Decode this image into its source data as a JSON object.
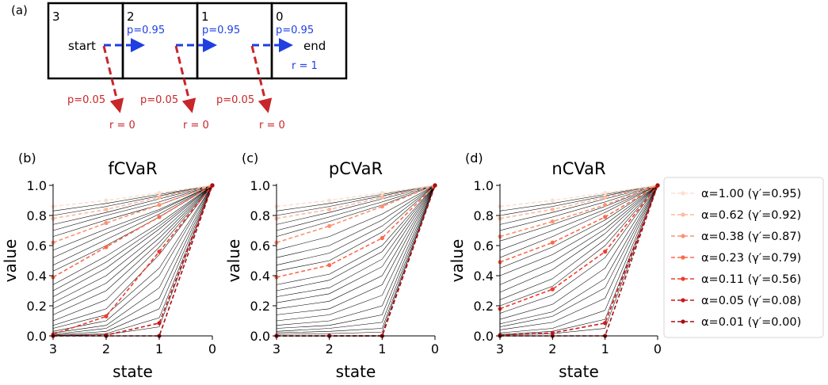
{
  "panel_a": {
    "panel_label": "(a)",
    "state_numbers": [
      "3",
      "2",
      "1",
      "0"
    ],
    "start_label": "start",
    "end_label": "end",
    "end_reward": "r = 1",
    "forward_prob_labels": [
      "p=0.95",
      "p=0.95",
      "p=0.95"
    ],
    "fail_prob_labels": [
      "p=0.05",
      "p=0.05",
      "p=0.05"
    ],
    "fail_reward_labels": [
      "r = 0",
      "r = 0",
      "r = 0"
    ],
    "colors": {
      "forward": "#1f3fe0",
      "fail": "#c8262a",
      "box": "#000000"
    }
  },
  "legend": {
    "entries": [
      "α=1.00 (γ′=0.95)",
      "α=0.62 (γ′=0.92)",
      "α=0.38 (γ′=0.87)",
      "α=0.23 (γ′=0.79)",
      "α=0.11 (γ′=0.56)",
      "α=0.05 (γ′=0.08)",
      "α=0.01 (γ′=0.00)"
    ],
    "colors": [
      "#fde0d0",
      "#fcbba1",
      "#fc9272",
      "#fb6a4a",
      "#ef3b2c",
      "#cb181d",
      "#a50f15"
    ]
  },
  "chart_data": [
    {
      "type": "line",
      "panel_label": "(b)",
      "title": "fCVaR",
      "xlabel": "state",
      "ylabel": "value",
      "x": [
        3,
        2,
        1,
        0
      ],
      "x_tick_labels": [
        "3",
        "2",
        "1",
        "0"
      ],
      "xlim": [
        3,
        0
      ],
      "ylim": [
        0,
        1.0
      ],
      "y_ticks": [
        0.0,
        0.2,
        0.4,
        0.6,
        0.8,
        1.0
      ],
      "y_tick_labels": [
        "0.0",
        "0.2",
        "0.4",
        "0.6",
        "0.8",
        "1.0"
      ],
      "background_lines": [
        [
          0.83,
          0.88,
          0.94,
          1.0
        ],
        [
          0.8,
          0.86,
          0.93,
          1.0
        ],
        [
          0.74,
          0.82,
          0.91,
          1.0
        ],
        [
          0.7,
          0.8,
          0.89,
          1.0
        ],
        [
          0.66,
          0.77,
          0.87,
          1.0
        ],
        [
          0.57,
          0.71,
          0.84,
          1.0
        ],
        [
          0.52,
          0.68,
          0.83,
          1.0
        ],
        [
          0.47,
          0.64,
          0.81,
          1.0
        ],
        [
          0.43,
          0.6,
          0.79,
          1.0
        ],
        [
          0.34,
          0.53,
          0.75,
          1.0
        ],
        [
          0.3,
          0.49,
          0.73,
          1.0
        ],
        [
          0.26,
          0.45,
          0.71,
          1.0
        ],
        [
          0.22,
          0.4,
          0.68,
          1.0
        ],
        [
          0.18,
          0.35,
          0.65,
          1.0
        ],
        [
          0.14,
          0.3,
          0.62,
          1.0
        ],
        [
          0.1,
          0.24,
          0.59,
          1.0
        ],
        [
          0.07,
          0.18,
          0.54,
          1.0
        ],
        [
          0.05,
          0.14,
          0.45,
          1.0
        ],
        [
          0.03,
          0.1,
          0.4,
          1.0
        ],
        [
          0.02,
          0.07,
          0.32,
          1.0
        ],
        [
          0.01,
          0.05,
          0.25,
          1.0
        ],
        [
          0.005,
          0.03,
          0.18,
          1.0
        ],
        [
          0.002,
          0.015,
          0.12,
          1.0
        ],
        [
          0.001,
          0.008,
          0.06,
          1.0
        ]
      ],
      "series": [
        {
          "values": [
            0.86,
            0.9,
            0.95,
            1.0
          ]
        },
        {
          "values": [
            0.78,
            0.84,
            0.92,
            1.0
          ]
        },
        {
          "values": [
            0.62,
            0.75,
            0.87,
            1.0
          ]
        },
        {
          "values": [
            0.39,
            0.59,
            0.79,
            1.0
          ]
        },
        {
          "values": [
            0.01,
            0.13,
            0.56,
            1.0
          ]
        },
        {
          "values": [
            0.0,
            0.005,
            0.085,
            1.0
          ]
        },
        {
          "values": [
            0.0,
            0.0,
            0.0,
            1.0
          ]
        }
      ]
    },
    {
      "type": "line",
      "panel_label": "(c)",
      "title": "pCVaR",
      "xlabel": "state",
      "ylabel": "value",
      "x": [
        3,
        2,
        1,
        0
      ],
      "x_tick_labels": [
        "3",
        "2",
        "1",
        "0"
      ],
      "xlim": [
        3,
        0
      ],
      "ylim": [
        0,
        1.0
      ],
      "y_ticks": [
        0.0,
        0.2,
        0.4,
        0.6,
        0.8,
        1.0
      ],
      "y_tick_labels": [
        "0.0",
        "0.2",
        "0.4",
        "0.6",
        "0.8",
        "1.0"
      ],
      "background_lines": [
        [
          0.83,
          0.88,
          0.94,
          1.0
        ],
        [
          0.8,
          0.86,
          0.93,
          1.0
        ],
        [
          0.74,
          0.82,
          0.91,
          1.0
        ],
        [
          0.7,
          0.79,
          0.89,
          1.0
        ],
        [
          0.66,
          0.76,
          0.87,
          1.0
        ],
        [
          0.57,
          0.66,
          0.81,
          1.0
        ],
        [
          0.52,
          0.6,
          0.77,
          1.0
        ],
        [
          0.47,
          0.55,
          0.73,
          1.0
        ],
        [
          0.43,
          0.5,
          0.69,
          1.0
        ],
        [
          0.34,
          0.41,
          0.6,
          1.0
        ],
        [
          0.3,
          0.37,
          0.56,
          1.0
        ],
        [
          0.26,
          0.32,
          0.51,
          1.0
        ],
        [
          0.22,
          0.28,
          0.46,
          1.0
        ],
        [
          0.18,
          0.23,
          0.4,
          1.0
        ],
        [
          0.14,
          0.18,
          0.34,
          1.0
        ],
        [
          0.1,
          0.14,
          0.27,
          1.0
        ],
        [
          0.07,
          0.1,
          0.2,
          1.0
        ],
        [
          0.05,
          0.07,
          0.14,
          1.0
        ],
        [
          0.03,
          0.05,
          0.09,
          1.0
        ],
        [
          0.02,
          0.03,
          0.05,
          1.0
        ],
        [
          0.01,
          0.015,
          0.025,
          1.0
        ]
      ],
      "series": [
        {
          "values": [
            0.86,
            0.9,
            0.95,
            1.0
          ]
        },
        {
          "values": [
            0.78,
            0.84,
            0.92,
            1.0
          ]
        },
        {
          "values": [
            0.62,
            0.73,
            0.86,
            1.0
          ]
        },
        {
          "values": [
            0.39,
            0.47,
            0.65,
            1.0
          ]
        },
        {
          "values": [
            0.0,
            0.0,
            0.0,
            1.0
          ]
        },
        {
          "values": [
            0.0,
            0.0,
            0.0,
            1.0
          ]
        },
        {
          "values": [
            0.0,
            0.0,
            0.0,
            1.0
          ]
        }
      ]
    },
    {
      "type": "line",
      "panel_label": "(d)",
      "title": "nCVaR",
      "xlabel": "state",
      "ylabel": "value",
      "x": [
        3,
        2,
        1,
        0
      ],
      "x_tick_labels": [
        "3",
        "2",
        "1",
        "0"
      ],
      "xlim": [
        3,
        0
      ],
      "ylim": [
        0,
        1.0
      ],
      "y_ticks": [
        0.0,
        0.2,
        0.4,
        0.6,
        0.8,
        1.0
      ],
      "y_tick_labels": [
        "0.0",
        "0.2",
        "0.4",
        "0.6",
        "0.8",
        "1.0"
      ],
      "background_lines": [
        [
          0.83,
          0.88,
          0.94,
          1.0
        ],
        [
          0.8,
          0.86,
          0.93,
          1.0
        ],
        [
          0.74,
          0.82,
          0.91,
          1.0
        ],
        [
          0.7,
          0.79,
          0.89,
          1.0
        ],
        [
          0.63,
          0.74,
          0.86,
          1.0
        ],
        [
          0.57,
          0.7,
          0.84,
          1.0
        ],
        [
          0.52,
          0.66,
          0.82,
          1.0
        ],
        [
          0.45,
          0.59,
          0.77,
          1.0
        ],
        [
          0.4,
          0.54,
          0.74,
          1.0
        ],
        [
          0.34,
          0.49,
          0.71,
          1.0
        ],
        [
          0.29,
          0.44,
          0.68,
          1.0
        ],
        [
          0.24,
          0.38,
          0.64,
          1.0
        ],
        [
          0.2,
          0.33,
          0.6,
          1.0
        ],
        [
          0.15,
          0.27,
          0.52,
          1.0
        ],
        [
          0.11,
          0.21,
          0.45,
          1.0
        ],
        [
          0.08,
          0.16,
          0.38,
          1.0
        ],
        [
          0.06,
          0.13,
          0.32,
          1.0
        ],
        [
          0.04,
          0.09,
          0.25,
          1.0
        ],
        [
          0.02,
          0.05,
          0.17,
          1.0
        ],
        [
          0.01,
          0.03,
          0.11,
          1.0
        ],
        [
          0.005,
          0.015,
          0.05,
          1.0
        ]
      ],
      "series": [
        {
          "values": [
            0.86,
            0.9,
            0.95,
            1.0
          ]
        },
        {
          "values": [
            0.78,
            0.84,
            0.92,
            1.0
          ]
        },
        {
          "values": [
            0.66,
            0.76,
            0.87,
            1.0
          ]
        },
        {
          "values": [
            0.49,
            0.62,
            0.79,
            1.0
          ]
        },
        {
          "values": [
            0.18,
            0.31,
            0.56,
            1.0
          ]
        },
        {
          "values": [
            0.005,
            0.02,
            0.085,
            1.0
          ]
        },
        {
          "values": [
            0.0,
            0.0,
            0.0,
            1.0
          ]
        }
      ]
    }
  ]
}
